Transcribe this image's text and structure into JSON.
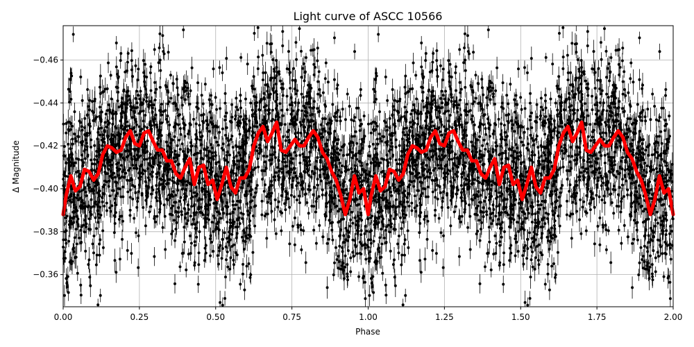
{
  "chart_data": {
    "type": "scatter",
    "title": "Light curve of ASCC 10566",
    "xlabel": "Phase",
    "ylabel": "Δ Magnitude",
    "xlim": [
      0,
      2
    ],
    "ylim": [
      -0.345,
      -0.476
    ],
    "y_inverted": true,
    "grid": true,
    "xticks": [
      0.0,
      0.25,
      0.5,
      0.75,
      1.0,
      1.25,
      1.5,
      1.75,
      2.0
    ],
    "xtick_labels": [
      "0.00",
      "0.25",
      "0.50",
      "0.75",
      "1.00",
      "1.25",
      "1.50",
      "1.75",
      "2.00"
    ],
    "yticks": [
      -0.36,
      -0.38,
      -0.4,
      -0.42,
      -0.44,
      -0.46
    ],
    "ytick_labels": [
      "−0.36",
      "−0.38",
      "−0.40",
      "−0.42",
      "−0.44",
      "−0.46"
    ],
    "series": [
      {
        "kind": "points_with_errorbars",
        "color": "#000000",
        "point_count": 2600,
        "period": 1.0,
        "scatter_std": 0.021,
        "typical_error": 0.004
      },
      {
        "kind": "binned_mean_line",
        "color": "#ff0000",
        "phase": [
          0.0,
          0.01,
          0.025,
          0.04,
          0.055,
          0.07,
          0.085,
          0.1,
          0.115,
          0.13,
          0.145,
          0.16,
          0.175,
          0.19,
          0.205,
          0.22,
          0.235,
          0.25,
          0.265,
          0.28,
          0.295,
          0.31,
          0.325,
          0.34,
          0.355,
          0.37,
          0.385,
          0.4,
          0.415,
          0.43,
          0.445,
          0.46,
          0.475,
          0.49,
          0.505,
          0.52,
          0.535,
          0.55,
          0.565,
          0.58,
          0.595,
          0.61,
          0.625,
          0.64,
          0.655,
          0.67,
          0.685,
          0.7,
          0.715,
          0.73,
          0.745,
          0.76,
          0.775,
          0.79,
          0.805,
          0.82,
          0.835,
          0.85,
          0.865,
          0.88,
          0.895,
          0.91,
          0.925,
          0.94,
          0.955,
          0.97,
          0.985,
          1.0
        ],
        "value": [
          -0.388,
          -0.397,
          -0.406,
          -0.399,
          -0.401,
          -0.409,
          -0.408,
          -0.404,
          -0.407,
          -0.416,
          -0.42,
          -0.419,
          -0.417,
          -0.418,
          -0.424,
          -0.427,
          -0.421,
          -0.42,
          -0.426,
          -0.427,
          -0.422,
          -0.418,
          -0.418,
          -0.413,
          -0.413,
          -0.407,
          -0.405,
          -0.41,
          -0.414,
          -0.402,
          -0.41,
          -0.411,
          -0.402,
          -0.404,
          -0.395,
          -0.402,
          -0.41,
          -0.401,
          -0.398,
          -0.405,
          -0.405,
          -0.409,
          -0.42,
          -0.426,
          -0.429,
          -0.422,
          -0.426,
          -0.431,
          -0.418,
          -0.417,
          -0.42,
          -0.423,
          -0.42,
          -0.42,
          -0.424,
          -0.427,
          -0.424,
          -0.417,
          -0.414,
          -0.408,
          -0.404,
          -0.397,
          -0.388,
          -0.395,
          -0.406,
          -0.398,
          -0.4,
          -0.388
        ]
      }
    ]
  }
}
